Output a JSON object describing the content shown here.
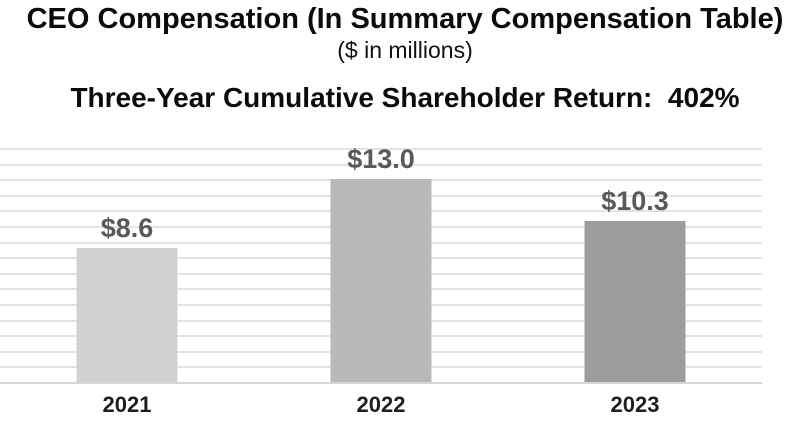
{
  "header": {
    "title": "CEO Compensation (In Summary Compensation Table)",
    "subtitle": "($ in millions)",
    "return_heading": "Three-Year Cumulative Shareholder Return:  402%"
  },
  "chart_data": {
    "type": "bar",
    "title": "CEO Compensation (In Summary Compensation Table)",
    "subtitle": "($ in millions)",
    "annotation": "Three-Year Cumulative Shareholder Return: 402%",
    "categories": [
      "2021",
      "2022",
      "2023"
    ],
    "values": [
      8.6,
      13.0,
      10.3
    ],
    "value_labels": [
      "$8.6",
      "$13.0",
      "$10.3"
    ],
    "unit": "$ in millions",
    "xlabel": "",
    "ylabel": "",
    "ylim": [
      0,
      15
    ],
    "gridline_step": 1,
    "grid": true,
    "legend": false,
    "bar_colors": [
      "#d1d1d1",
      "#b9b9b9",
      "#9d9d9d"
    ],
    "gridline_color": "#e3e3e3",
    "axis_line_color": "#d6d6d6",
    "value_label_color": "#595959",
    "category_label_color": "#1f1f1f",
    "background_color": "#ffffff"
  }
}
